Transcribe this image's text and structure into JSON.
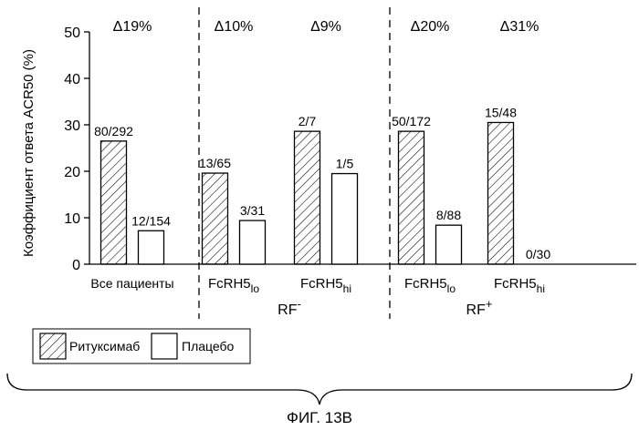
{
  "chart_data": {
    "type": "bar",
    "title": "",
    "ylabel": "Коэффициент ответа ACR50 (%)",
    "ylim": [
      0,
      50
    ],
    "yticks": [
      0,
      10,
      20,
      30,
      40,
      50
    ],
    "grid": false,
    "legend_position": "bottom-left",
    "series": [
      {
        "name": "Ритуксимаб",
        "pattern": "diagonal-hatch",
        "color": "#000000"
      },
      {
        "name": "Плацебо",
        "pattern": "none",
        "color": "#ffffff"
      }
    ],
    "groups": [
      {
        "label": "Все пациенты",
        "label_sub": "",
        "delta": "Δ19%",
        "bars": [
          {
            "value": 26.5,
            "label": "80/292"
          },
          {
            "value": 7.2,
            "label": "12/154"
          }
        ]
      },
      {
        "label": "FcRH5",
        "label_sub": "lo",
        "delta": "Δ10%",
        "bars": [
          {
            "value": 19.6,
            "label": "13/65"
          },
          {
            "value": 9.4,
            "label": "3/31"
          }
        ]
      },
      {
        "label": "FcRH5",
        "label_sub": "hi",
        "delta": "Δ9%",
        "bars": [
          {
            "value": 28.6,
            "label": "2/7"
          },
          {
            "value": 19.5,
            "label": "1/5"
          }
        ]
      },
      {
        "label": "FcRH5",
        "label_sub": "lo",
        "delta": "Δ20%",
        "bars": [
          {
            "value": 28.6,
            "label": "50/172"
          },
          {
            "value": 8.4,
            "label": "8/88"
          }
        ]
      },
      {
        "label": "FcRH5",
        "label_sub": "hi",
        "delta": "Δ31%",
        "bars": [
          {
            "value": 30.5,
            "label": "15/48"
          },
          {
            "value": 0,
            "label": "0/30"
          }
        ]
      }
    ],
    "supergroups": [
      {
        "label": "RF",
        "sup": "-"
      },
      {
        "label": "RF",
        "sup": "+"
      }
    ]
  },
  "figure_caption": "ФИГ. 13В"
}
